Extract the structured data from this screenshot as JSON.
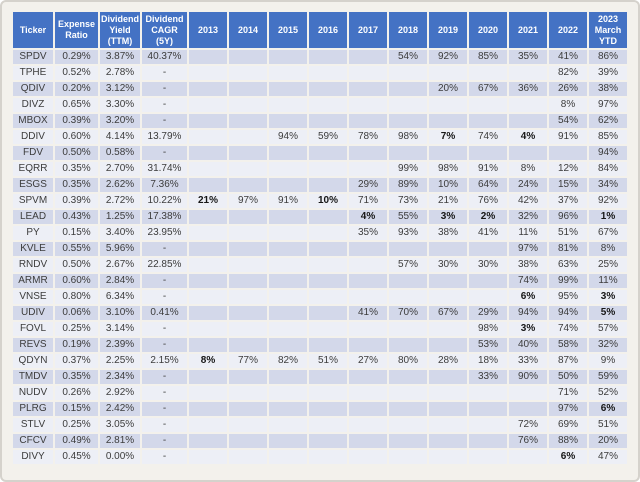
{
  "colors": {
    "header_bg": "#4472c4",
    "header_text": "#ffffff",
    "band_odd": "#d3d8ea",
    "band_even": "#edeff6",
    "cell_text": "#3c3c3c"
  },
  "table": {
    "fixed_columns": [
      {
        "key": "ticker",
        "label": "Ticker"
      },
      {
        "key": "expense_ratio",
        "label": "Expense Ratio"
      },
      {
        "key": "dividend_yield_ttm",
        "label": "Dividend Yield (TTM)"
      },
      {
        "key": "dividend_cagr_5y",
        "label": "Dividend CAGR (5Y)"
      }
    ],
    "year_columns": [
      "2013",
      "2014",
      "2015",
      "2016",
      "2017",
      "2018",
      "2019",
      "2020",
      "2021",
      "2022",
      "2023 March YTD"
    ],
    "rows": [
      {
        "ticker": "SPDV",
        "expense_ratio": "0.29%",
        "dividend_yield_ttm": "3.87%",
        "dividend_cagr_5y": "40.37%",
        "values": [
          "",
          "",
          "",
          "",
          "",
          "54%",
          "92%",
          "85%",
          "35%",
          "41%",
          "86%"
        ],
        "bold": []
      },
      {
        "ticker": "TPHE",
        "expense_ratio": "0.52%",
        "dividend_yield_ttm": "2.78%",
        "dividend_cagr_5y": "-",
        "values": [
          "",
          "",
          "",
          "",
          "",
          "",
          "",
          "",
          "",
          "82%",
          "39%"
        ],
        "bold": []
      },
      {
        "ticker": "QDIV",
        "expense_ratio": "0.20%",
        "dividend_yield_ttm": "3.12%",
        "dividend_cagr_5y": "-",
        "values": [
          "",
          "",
          "",
          "",
          "",
          "",
          "20%",
          "67%",
          "36%",
          "26%",
          "38%"
        ],
        "bold": []
      },
      {
        "ticker": "DIVZ",
        "expense_ratio": "0.65%",
        "dividend_yield_ttm": "3.30%",
        "dividend_cagr_5y": "-",
        "values": [
          "",
          "",
          "",
          "",
          "",
          "",
          "",
          "",
          "",
          "8%",
          "97%"
        ],
        "bold": []
      },
      {
        "ticker": "MBOX",
        "expense_ratio": "0.39%",
        "dividend_yield_ttm": "3.20%",
        "dividend_cagr_5y": "-",
        "values": [
          "",
          "",
          "",
          "",
          "",
          "",
          "",
          "",
          "",
          "54%",
          "62%"
        ],
        "bold": []
      },
      {
        "ticker": "DDIV",
        "expense_ratio": "0.60%",
        "dividend_yield_ttm": "4.14%",
        "dividend_cagr_5y": "13.79%",
        "values": [
          "",
          "",
          "94%",
          "59%",
          "78%",
          "98%",
          "7%",
          "74%",
          "4%",
          "91%",
          "85%"
        ],
        "bold": [
          6,
          8
        ]
      },
      {
        "ticker": "FDV",
        "expense_ratio": "0.50%",
        "dividend_yield_ttm": "0.58%",
        "dividend_cagr_5y": "-",
        "values": [
          "",
          "",
          "",
          "",
          "",
          "",
          "",
          "",
          "",
          "",
          "94%"
        ],
        "bold": []
      },
      {
        "ticker": "EQRR",
        "expense_ratio": "0.35%",
        "dividend_yield_ttm": "2.70%",
        "dividend_cagr_5y": "31.74%",
        "values": [
          "",
          "",
          "",
          "",
          "",
          "99%",
          "98%",
          "91%",
          "8%",
          "12%",
          "84%"
        ],
        "bold": []
      },
      {
        "ticker": "ESGS",
        "expense_ratio": "0.35%",
        "dividend_yield_ttm": "2.62%",
        "dividend_cagr_5y": "7.36%",
        "values": [
          "",
          "",
          "",
          "",
          "29%",
          "89%",
          "10%",
          "64%",
          "24%",
          "15%",
          "34%"
        ],
        "bold": []
      },
      {
        "ticker": "SPVM",
        "expense_ratio": "0.39%",
        "dividend_yield_ttm": "2.72%",
        "dividend_cagr_5y": "10.22%",
        "values": [
          "21%",
          "97%",
          "91%",
          "10%",
          "71%",
          "73%",
          "21%",
          "76%",
          "42%",
          "37%",
          "92%"
        ],
        "bold": [
          0,
          3
        ]
      },
      {
        "ticker": "LEAD",
        "expense_ratio": "0.43%",
        "dividend_yield_ttm": "1.25%",
        "dividend_cagr_5y": "17.38%",
        "values": [
          "",
          "",
          "",
          "",
          "4%",
          "55%",
          "3%",
          "2%",
          "32%",
          "96%",
          "1%"
        ],
        "bold": [
          4,
          6,
          7,
          10
        ]
      },
      {
        "ticker": "PY",
        "expense_ratio": "0.15%",
        "dividend_yield_ttm": "3.40%",
        "dividend_cagr_5y": "23.95%",
        "values": [
          "",
          "",
          "",
          "",
          "35%",
          "93%",
          "38%",
          "41%",
          "11%",
          "51%",
          "67%"
        ],
        "bold": []
      },
      {
        "ticker": "KVLE",
        "expense_ratio": "0.55%",
        "dividend_yield_ttm": "5.96%",
        "dividend_cagr_5y": "-",
        "values": [
          "",
          "",
          "",
          "",
          "",
          "",
          "",
          "",
          "97%",
          "81%",
          "8%"
        ],
        "bold": []
      },
      {
        "ticker": "RNDV",
        "expense_ratio": "0.50%",
        "dividend_yield_ttm": "2.67%",
        "dividend_cagr_5y": "22.85%",
        "values": [
          "",
          "",
          "",
          "",
          "",
          "57%",
          "30%",
          "30%",
          "38%",
          "63%",
          "25%"
        ],
        "bold": []
      },
      {
        "ticker": "ARMR",
        "expense_ratio": "0.60%",
        "dividend_yield_ttm": "2.84%",
        "dividend_cagr_5y": "-",
        "values": [
          "",
          "",
          "",
          "",
          "",
          "",
          "",
          "",
          "74%",
          "99%",
          "11%"
        ],
        "bold": []
      },
      {
        "ticker": "VNSE",
        "expense_ratio": "0.80%",
        "dividend_yield_ttm": "6.34%",
        "dividend_cagr_5y": "-",
        "values": [
          "",
          "",
          "",
          "",
          "",
          "",
          "",
          "",
          "6%",
          "95%",
          "3%"
        ],
        "bold": [
          8,
          10
        ]
      },
      {
        "ticker": "UDIV",
        "expense_ratio": "0.06%",
        "dividend_yield_ttm": "3.10%",
        "dividend_cagr_5y": "0.41%",
        "values": [
          "",
          "",
          "",
          "",
          "41%",
          "70%",
          "67%",
          "29%",
          "94%",
          "94%",
          "5%"
        ],
        "bold": [
          10
        ]
      },
      {
        "ticker": "FOVL",
        "expense_ratio": "0.25%",
        "dividend_yield_ttm": "3.14%",
        "dividend_cagr_5y": "-",
        "values": [
          "",
          "",
          "",
          "",
          "",
          "",
          "",
          "98%",
          "3%",
          "74%",
          "57%"
        ],
        "bold": [
          8
        ]
      },
      {
        "ticker": "REVS",
        "expense_ratio": "0.19%",
        "dividend_yield_ttm": "2.39%",
        "dividend_cagr_5y": "-",
        "values": [
          "",
          "",
          "",
          "",
          "",
          "",
          "",
          "53%",
          "40%",
          "58%",
          "32%"
        ],
        "bold": []
      },
      {
        "ticker": "QDYN",
        "expense_ratio": "0.37%",
        "dividend_yield_ttm": "2.25%",
        "dividend_cagr_5y": "2.15%",
        "values": [
          "8%",
          "77%",
          "82%",
          "51%",
          "27%",
          "80%",
          "28%",
          "18%",
          "33%",
          "87%",
          "9%"
        ],
        "bold": [
          0
        ]
      },
      {
        "ticker": "TMDV",
        "expense_ratio": "0.35%",
        "dividend_yield_ttm": "2.34%",
        "dividend_cagr_5y": "-",
        "values": [
          "",
          "",
          "",
          "",
          "",
          "",
          "",
          "33%",
          "90%",
          "50%",
          "59%"
        ],
        "bold": []
      },
      {
        "ticker": "NUDV",
        "expense_ratio": "0.26%",
        "dividend_yield_ttm": "2.92%",
        "dividend_cagr_5y": "-",
        "values": [
          "",
          "",
          "",
          "",
          "",
          "",
          "",
          "",
          "",
          "71%",
          "52%"
        ],
        "bold": []
      },
      {
        "ticker": "PLRG",
        "expense_ratio": "0.15%",
        "dividend_yield_ttm": "2.42%",
        "dividend_cagr_5y": "-",
        "values": [
          "",
          "",
          "",
          "",
          "",
          "",
          "",
          "",
          "",
          "97%",
          "6%"
        ],
        "bold": [
          10
        ]
      },
      {
        "ticker": "STLV",
        "expense_ratio": "0.25%",
        "dividend_yield_ttm": "3.05%",
        "dividend_cagr_5y": "-",
        "values": [
          "",
          "",
          "",
          "",
          "",
          "",
          "",
          "",
          "72%",
          "69%",
          "51%"
        ],
        "bold": []
      },
      {
        "ticker": "CFCV",
        "expense_ratio": "0.49%",
        "dividend_yield_ttm": "2.81%",
        "dividend_cagr_5y": "-",
        "values": [
          "",
          "",
          "",
          "",
          "",
          "",
          "",
          "",
          "76%",
          "88%",
          "20%"
        ],
        "bold": []
      },
      {
        "ticker": "DIVY",
        "expense_ratio": "0.45%",
        "dividend_yield_ttm": "0.00%",
        "dividend_cagr_5y": "-",
        "values": [
          "",
          "",
          "",
          "",
          "",
          "",
          "",
          "",
          "",
          "6%",
          "47%"
        ],
        "bold": [
          9
        ]
      }
    ]
  }
}
